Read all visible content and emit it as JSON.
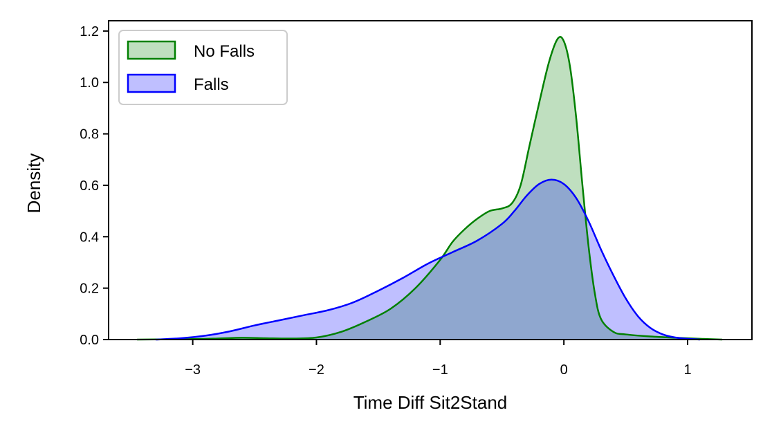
{
  "chart_data": {
    "type": "area",
    "title": "",
    "xlabel": "Time Diff Sit2Stand",
    "ylabel": "Density",
    "xlim": [
      -3.68,
      1.52
    ],
    "ylim": [
      0.0,
      1.24
    ],
    "xticks": [
      -3,
      -2,
      -1,
      0,
      1
    ],
    "xtick_labels": [
      "−3",
      "−2",
      "−1",
      "0",
      "1"
    ],
    "yticks": [
      0.0,
      0.2,
      0.4,
      0.6,
      0.8,
      1.0,
      1.2
    ],
    "ytick_labels": [
      "0.0",
      "0.2",
      "0.4",
      "0.6",
      "0.8",
      "1.0",
      "1.2"
    ],
    "grid": false,
    "legend": {
      "position": "top-left"
    },
    "series": [
      {
        "name": "No Falls",
        "line_color": "#008000",
        "fill_color": "#008000",
        "fill_opacity": 0.25,
        "points": [
          [
            -3.45,
            0.0
          ],
          [
            -3.0,
            0.002
          ],
          [
            -2.8,
            0.004
          ],
          [
            -2.6,
            0.007
          ],
          [
            -2.4,
            0.005
          ],
          [
            -2.2,
            0.004
          ],
          [
            -2.0,
            0.008
          ],
          [
            -1.8,
            0.03
          ],
          [
            -1.6,
            0.07
          ],
          [
            -1.4,
            0.12
          ],
          [
            -1.2,
            0.2
          ],
          [
            -1.0,
            0.31
          ],
          [
            -0.9,
            0.38
          ],
          [
            -0.8,
            0.43
          ],
          [
            -0.7,
            0.47
          ],
          [
            -0.6,
            0.5
          ],
          [
            -0.5,
            0.51
          ],
          [
            -0.42,
            0.53
          ],
          [
            -0.35,
            0.6
          ],
          [
            -0.28,
            0.75
          ],
          [
            -0.2,
            0.92
          ],
          [
            -0.12,
            1.08
          ],
          [
            -0.05,
            1.17
          ],
          [
            0.0,
            1.16
          ],
          [
            0.05,
            1.06
          ],
          [
            0.1,
            0.86
          ],
          [
            0.15,
            0.6
          ],
          [
            0.2,
            0.36
          ],
          [
            0.25,
            0.18
          ],
          [
            0.3,
            0.08
          ],
          [
            0.4,
            0.03
          ],
          [
            0.5,
            0.02
          ],
          [
            0.7,
            0.012
          ],
          [
            0.9,
            0.007
          ],
          [
            1.1,
            0.003
          ],
          [
            1.28,
            0.0
          ]
        ]
      },
      {
        "name": "Falls",
        "line_color": "#0000ff",
        "fill_color": "#0000ff",
        "fill_opacity": 0.25,
        "points": [
          [
            -3.3,
            0.0
          ],
          [
            -3.1,
            0.005
          ],
          [
            -2.9,
            0.015
          ],
          [
            -2.7,
            0.032
          ],
          [
            -2.5,
            0.055
          ],
          [
            -2.3,
            0.075
          ],
          [
            -2.1,
            0.095
          ],
          [
            -1.9,
            0.115
          ],
          [
            -1.7,
            0.145
          ],
          [
            -1.5,
            0.19
          ],
          [
            -1.3,
            0.24
          ],
          [
            -1.1,
            0.295
          ],
          [
            -0.9,
            0.34
          ],
          [
            -0.7,
            0.385
          ],
          [
            -0.5,
            0.45
          ],
          [
            -0.4,
            0.5
          ],
          [
            -0.3,
            0.56
          ],
          [
            -0.2,
            0.605
          ],
          [
            -0.1,
            0.622
          ],
          [
            0.0,
            0.605
          ],
          [
            0.1,
            0.55
          ],
          [
            0.2,
            0.46
          ],
          [
            0.3,
            0.35
          ],
          [
            0.4,
            0.25
          ],
          [
            0.5,
            0.16
          ],
          [
            0.6,
            0.09
          ],
          [
            0.7,
            0.045
          ],
          [
            0.8,
            0.02
          ],
          [
            0.9,
            0.008
          ],
          [
            1.0,
            0.003
          ],
          [
            1.1,
            0.0
          ]
        ]
      }
    ]
  }
}
